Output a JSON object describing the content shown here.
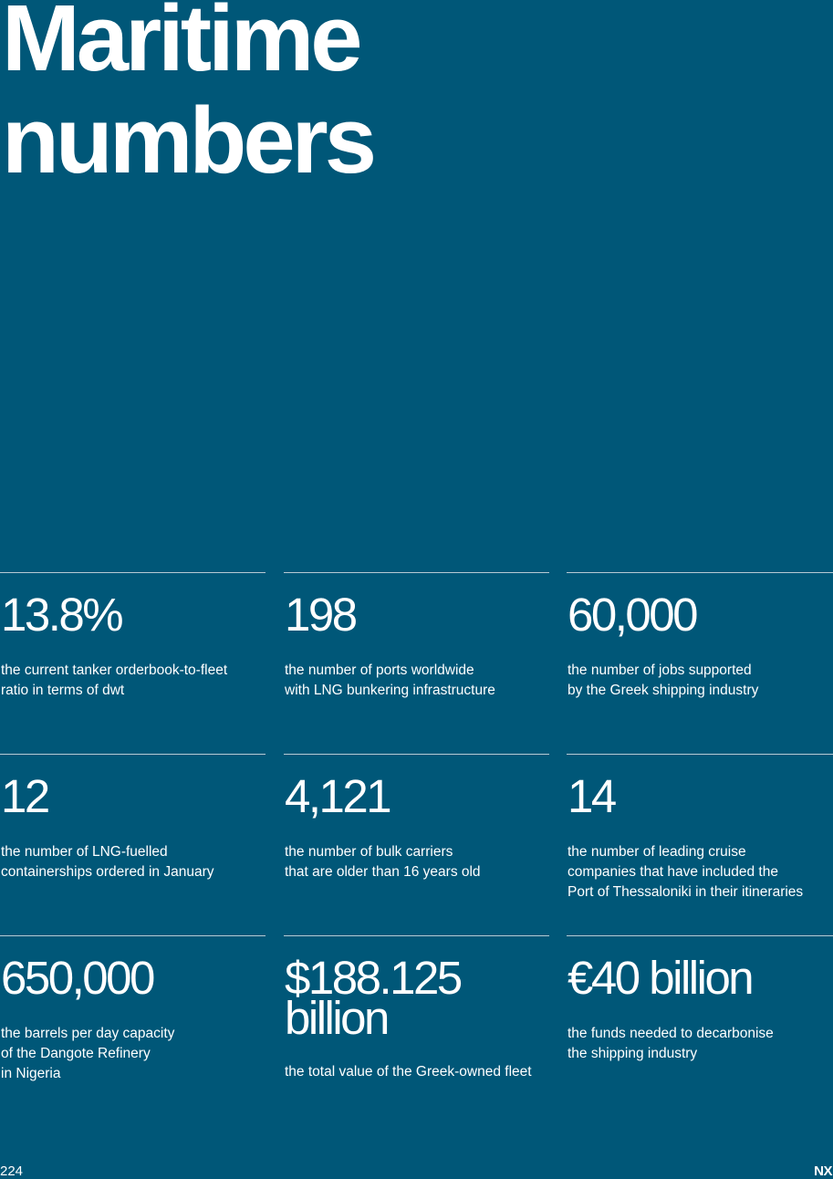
{
  "title": "Maritime\nnumbers",
  "stats": [
    [
      {
        "value": "13.8%",
        "description": "the current tanker orderbook-to-fleet\nratio in terms of dwt"
      },
      {
        "value": "198",
        "description": "the number of ports worldwide\nwith LNG bunkering infrastructure"
      },
      {
        "value": "60,000",
        "description": "the number of jobs supported\nby the Greek shipping industry"
      }
    ],
    [
      {
        "value": "12",
        "description": "the number of LNG-fuelled\ncontainerships ordered in January"
      },
      {
        "value": "4,121",
        "description": "the number of bulk carriers\nthat are older than 16 years old"
      },
      {
        "value": "14",
        "description": "the number of leading cruise\ncompanies that have included the\nPort of Thessaloniki in their itineraries"
      }
    ],
    [
      {
        "value": "650,000",
        "description": "the barrels per day capacity\nof the Dangote Refinery\nin Nigeria"
      },
      {
        "value": "$188.125\nbillion",
        "description": "the total value of the Greek-owned fleet"
      },
      {
        "value": "€40 billion",
        "description": "the funds needed to decarbonise\nthe shipping industry"
      }
    ]
  ],
  "footer": {
    "page_number": "224",
    "logo_text": "NX"
  },
  "colors": {
    "background": "#005778",
    "text": "#ffffff",
    "divider": "#b8cad4"
  }
}
